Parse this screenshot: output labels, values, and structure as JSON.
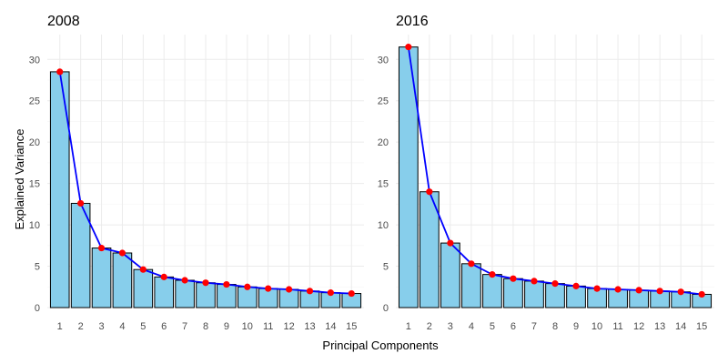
{
  "figure": {
    "xlabel": "Principal Components",
    "ylabel": "Explained Variance"
  },
  "chart_data": [
    {
      "type": "bar",
      "title": "2008",
      "categories": [
        "1",
        "2",
        "3",
        "4",
        "5",
        "6",
        "7",
        "8",
        "9",
        "10",
        "11",
        "12",
        "13",
        "14",
        "15"
      ],
      "values": [
        28.5,
        12.6,
        7.2,
        6.6,
        4.6,
        3.7,
        3.3,
        3.0,
        2.8,
        2.5,
        2.3,
        2.2,
        2.0,
        1.8,
        1.7
      ],
      "overlay": "line-with-points",
      "xlabel": "Principal Components",
      "ylabel": "Explained Variance",
      "ylim": [
        0,
        33
      ],
      "yticks": [
        0,
        5,
        10,
        15,
        20,
        25,
        30
      ],
      "grid": true,
      "colors": {
        "bar": "#87CEEB",
        "line": "#0000FF",
        "point": "#FF0000"
      }
    },
    {
      "type": "bar",
      "title": "2016",
      "categories": [
        "1",
        "2",
        "3",
        "4",
        "5",
        "6",
        "7",
        "8",
        "9",
        "10",
        "11",
        "12",
        "13",
        "14",
        "15"
      ],
      "values": [
        31.5,
        14.0,
        7.8,
        5.3,
        4.0,
        3.5,
        3.2,
        2.9,
        2.6,
        2.3,
        2.2,
        2.1,
        2.0,
        1.9,
        1.6
      ],
      "overlay": "line-with-points",
      "xlabel": "Principal Components",
      "ylabel": "Explained Variance",
      "ylim": [
        0,
        33
      ],
      "yticks": [
        0,
        5,
        10,
        15,
        20,
        25,
        30
      ],
      "grid": true,
      "colors": {
        "bar": "#87CEEB",
        "line": "#0000FF",
        "point": "#FF0000"
      }
    }
  ]
}
